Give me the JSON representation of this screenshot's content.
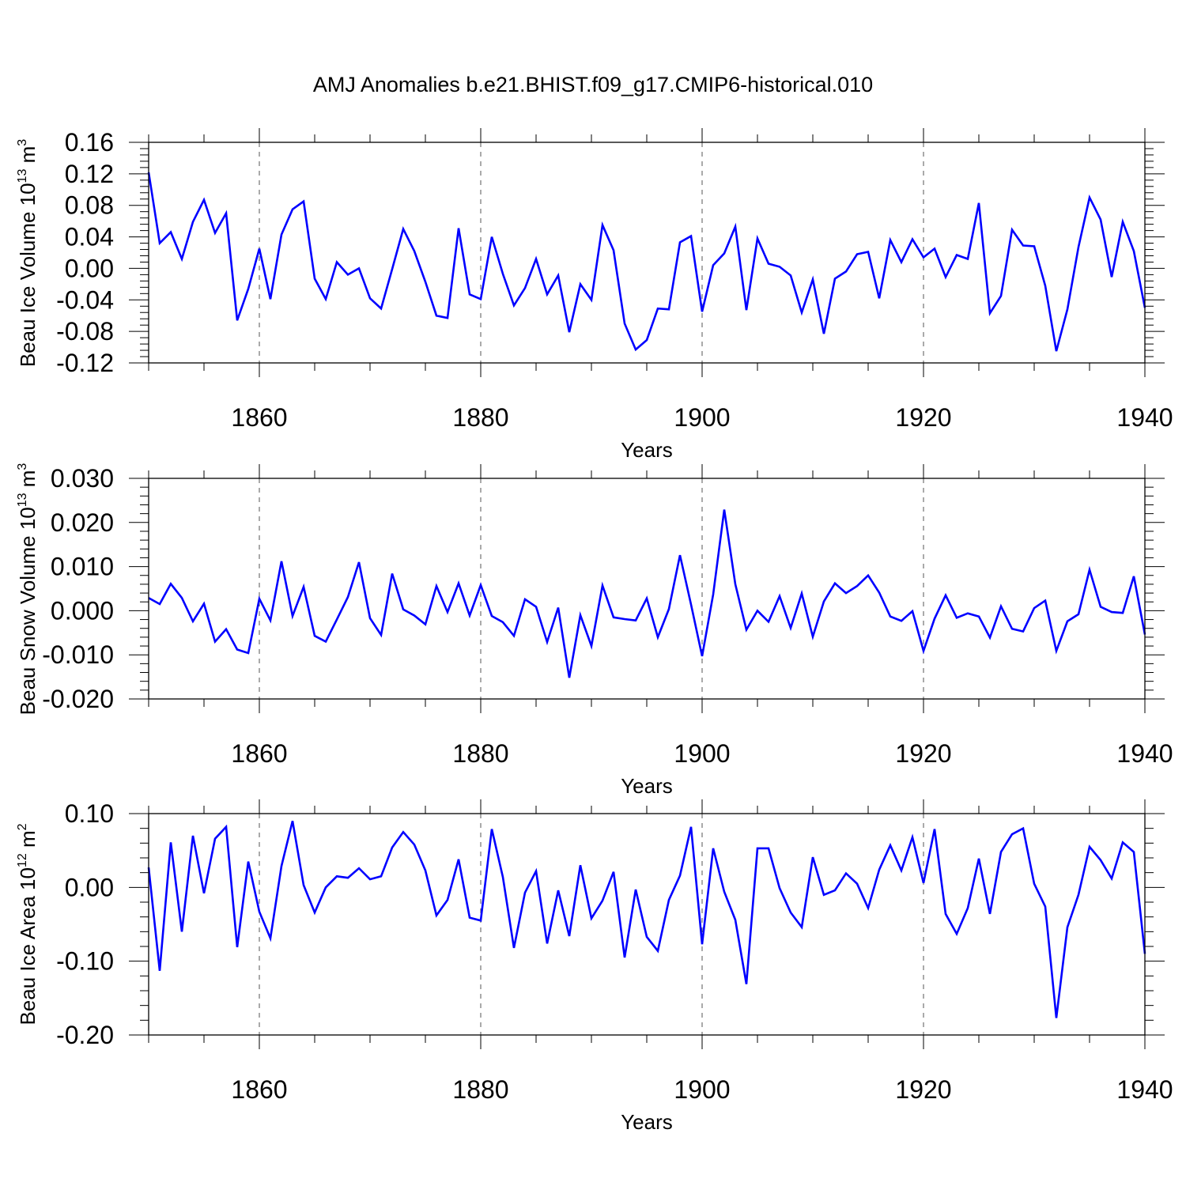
{
  "chart_data": [
    {
      "type": "line",
      "title": "AMJ Anomalies b.e21.BHIST.f09_g17.CMIP6-historical.010",
      "xlabel": "Years",
      "ylabel": "Beau Ice Volume 10",
      "ylabel_exp": "13",
      "ylabel_unit": " m",
      "ylabel_unit_exp": "3",
      "xlim": [
        1850,
        1940
      ],
      "ylim": [
        -0.12,
        0.16
      ],
      "yticks": [
        -0.12,
        -0.08,
        -0.04,
        0.0,
        0.04,
        0.08,
        0.12,
        0.16
      ],
      "ytick_labels": [
        "-0.12",
        "-0.08",
        "-0.04",
        "0.00",
        "0.04",
        "0.08",
        "0.12",
        "0.16"
      ],
      "xticks": [
        1860,
        1880,
        1900,
        1920,
        1940
      ],
      "xtick_labels": [
        "1860",
        "1880",
        "1900",
        "1920",
        "1940"
      ],
      "series": [
        {
          "name": "Beau Ice Volume",
          "color": "#0000ff",
          "x": [
            1850,
            1851,
            1852,
            1853,
            1854,
            1855,
            1856,
            1857,
            1858,
            1859,
            1860,
            1861,
            1862,
            1863,
            1864,
            1865,
            1866,
            1867,
            1868,
            1869,
            1870,
            1871,
            1872,
            1873,
            1874,
            1875,
            1876,
            1877,
            1878,
            1879,
            1880,
            1881,
            1882,
            1883,
            1884,
            1885,
            1886,
            1887,
            1888,
            1889,
            1890,
            1891,
            1892,
            1893,
            1894,
            1895,
            1896,
            1897,
            1898,
            1899,
            1900,
            1901,
            1902,
            1903,
            1904,
            1905,
            1906,
            1907,
            1908,
            1909,
            1910,
            1911,
            1912,
            1913,
            1914,
            1915,
            1916,
            1917,
            1918,
            1919,
            1920,
            1921,
            1922,
            1923,
            1924,
            1925,
            1926,
            1927,
            1928,
            1929,
            1930,
            1931,
            1932,
            1933,
            1934,
            1935,
            1936,
            1937,
            1938,
            1939,
            1940
          ],
          "values": [
            0.122,
            0.032,
            0.046,
            0.012,
            0.059,
            0.087,
            0.045,
            0.07,
            -0.066,
            -0.026,
            0.025,
            -0.039,
            0.043,
            0.075,
            0.085,
            -0.013,
            -0.039,
            0.008,
            -0.008,
            0.0,
            -0.038,
            -0.051,
            -0.001,
            0.05,
            0.022,
            -0.017,
            -0.06,
            -0.063,
            0.051,
            -0.033,
            -0.039,
            0.04,
            -0.007,
            -0.047,
            -0.025,
            0.012,
            -0.033,
            -0.009,
            -0.081,
            -0.02,
            -0.04,
            0.055,
            0.023,
            -0.07,
            -0.103,
            -0.091,
            -0.051,
            -0.052,
            0.033,
            0.041,
            -0.055,
            0.004,
            0.019,
            0.053,
            -0.053,
            0.038,
            0.006,
            0.002,
            -0.009,
            -0.056,
            -0.014,
            -0.083,
            -0.013,
            -0.004,
            0.018,
            0.021,
            -0.038,
            0.036,
            0.008,
            0.037,
            0.014,
            0.025,
            -0.011,
            0.017,
            0.012,
            0.083,
            -0.057,
            -0.035,
            0.049,
            0.029,
            0.028,
            -0.022,
            -0.105,
            -0.052,
            0.027,
            0.09,
            0.062,
            -0.011,
            0.059,
            0.022,
            -0.05
          ]
        }
      ]
    },
    {
      "type": "line",
      "xlabel": "Years",
      "ylabel": "Beau Snow Volume 10",
      "ylabel_exp": "13",
      "ylabel_unit": " m",
      "ylabel_unit_exp": "3",
      "xlim": [
        1850,
        1940
      ],
      "ylim": [
        -0.02,
        0.03
      ],
      "yticks": [
        -0.02,
        -0.01,
        0.0,
        0.01,
        0.02,
        0.03
      ],
      "ytick_labels": [
        "-0.020",
        "-0.010",
        "0.000",
        "0.010",
        "0.020",
        "0.030"
      ],
      "xticks": [
        1860,
        1880,
        1900,
        1920,
        1940
      ],
      "xtick_labels": [
        "1860",
        "1880",
        "1900",
        "1920",
        "1940"
      ],
      "series": [
        {
          "name": "Beau Snow Volume",
          "color": "#0000ff",
          "x": [
            1850,
            1851,
            1852,
            1853,
            1854,
            1855,
            1856,
            1857,
            1858,
            1859,
            1860,
            1861,
            1862,
            1863,
            1864,
            1865,
            1866,
            1867,
            1868,
            1869,
            1870,
            1871,
            1872,
            1873,
            1874,
            1875,
            1876,
            1877,
            1878,
            1879,
            1880,
            1881,
            1882,
            1883,
            1884,
            1885,
            1886,
            1887,
            1888,
            1889,
            1890,
            1891,
            1892,
            1893,
            1894,
            1895,
            1896,
            1897,
            1898,
            1899,
            1900,
            1901,
            1902,
            1903,
            1904,
            1905,
            1906,
            1907,
            1908,
            1909,
            1910,
            1911,
            1912,
            1913,
            1914,
            1915,
            1916,
            1917,
            1918,
            1919,
            1920,
            1921,
            1922,
            1923,
            1924,
            1925,
            1926,
            1927,
            1928,
            1929,
            1930,
            1931,
            1932,
            1933,
            1934,
            1935,
            1936,
            1937,
            1938,
            1939,
            1940
          ],
          "values": [
            0.0029,
            0.0015,
            0.0061,
            0.0029,
            -0.0024,
            0.0016,
            -0.007,
            -0.0042,
            -0.0088,
            -0.0096,
            0.0027,
            -0.0022,
            0.0112,
            -0.0012,
            0.0054,
            -0.0057,
            -0.007,
            -0.002,
            0.0031,
            0.011,
            -0.0017,
            -0.0055,
            0.0084,
            0.0003,
            -0.0011,
            -0.0031,
            0.0056,
            -0.0003,
            0.0062,
            -0.0011,
            0.0058,
            -0.0012,
            -0.0026,
            -0.0057,
            0.0026,
            0.0009,
            -0.0071,
            0.0007,
            -0.0152,
            -0.001,
            -0.008,
            0.0057,
            -0.0015,
            -0.0019,
            -0.0022,
            0.0028,
            -0.006,
            0.0004,
            0.0126,
            0.0014,
            -0.0103,
            0.0037,
            0.0229,
            0.006,
            -0.0043,
            0.0,
            -0.0025,
            0.0033,
            -0.0039,
            0.0039,
            -0.0059,
            0.0021,
            0.0062,
            0.004,
            0.0056,
            0.008,
            0.0041,
            -0.0013,
            -0.0023,
            -0.0001,
            -0.0091,
            -0.0018,
            0.0035,
            -0.0016,
            -0.0006,
            -0.0013,
            -0.0061,
            0.001,
            -0.0041,
            -0.0047,
            0.0006,
            0.0023,
            -0.0091,
            -0.0024,
            -0.0008,
            0.0093,
            0.0009,
            -0.0003,
            -0.0005,
            0.0078,
            -0.0054
          ]
        }
      ]
    },
    {
      "type": "line",
      "xlabel": "Years",
      "ylabel": "Beau Ice Area 10",
      "ylabel_exp": "12",
      "ylabel_unit": " m",
      "ylabel_unit_exp": "2",
      "xlim": [
        1850,
        1940
      ],
      "ylim": [
        -0.2,
        0.1
      ],
      "yticks": [
        -0.2,
        -0.1,
        0.0,
        0.1
      ],
      "ytick_labels": [
        "-0.20",
        "-0.10",
        "0.00",
        "0.10"
      ],
      "xticks": [
        1860,
        1880,
        1900,
        1920,
        1940
      ],
      "xtick_labels": [
        "1860",
        "1880",
        "1900",
        "1920",
        "1940"
      ],
      "series": [
        {
          "name": "Beau Ice Area",
          "color": "#0000ff",
          "x": [
            1850,
            1851,
            1852,
            1853,
            1854,
            1855,
            1856,
            1857,
            1858,
            1859,
            1860,
            1861,
            1862,
            1863,
            1864,
            1865,
            1866,
            1867,
            1868,
            1869,
            1870,
            1871,
            1872,
            1873,
            1874,
            1875,
            1876,
            1877,
            1878,
            1879,
            1880,
            1881,
            1882,
            1883,
            1884,
            1885,
            1886,
            1887,
            1888,
            1889,
            1890,
            1891,
            1892,
            1893,
            1894,
            1895,
            1896,
            1897,
            1898,
            1899,
            1900,
            1901,
            1902,
            1903,
            1904,
            1905,
            1906,
            1907,
            1908,
            1909,
            1910,
            1911,
            1912,
            1913,
            1914,
            1915,
            1916,
            1917,
            1918,
            1919,
            1920,
            1921,
            1922,
            1923,
            1924,
            1925,
            1926,
            1927,
            1928,
            1929,
            1930,
            1931,
            1932,
            1933,
            1934,
            1935,
            1936,
            1937,
            1938,
            1939,
            1940
          ],
          "values": [
            0.027,
            -0.113,
            0.061,
            -0.06,
            0.07,
            -0.008,
            0.066,
            0.082,
            -0.081,
            0.035,
            -0.033,
            -0.069,
            0.029,
            0.09,
            0.003,
            -0.034,
            0.0,
            0.015,
            0.013,
            0.026,
            0.011,
            0.015,
            0.054,
            0.075,
            0.058,
            0.023,
            -0.038,
            -0.017,
            0.038,
            -0.041,
            -0.045,
            0.079,
            0.014,
            -0.082,
            -0.007,
            0.022,
            -0.076,
            -0.004,
            -0.066,
            0.03,
            -0.042,
            -0.018,
            0.021,
            -0.095,
            -0.003,
            -0.067,
            -0.086,
            -0.017,
            0.016,
            0.082,
            -0.077,
            0.053,
            -0.006,
            -0.044,
            -0.131,
            0.053,
            0.053,
            -0.001,
            -0.034,
            -0.054,
            0.041,
            -0.01,
            -0.004,
            0.019,
            0.005,
            -0.028,
            0.024,
            0.057,
            0.023,
            0.068,
            0.006,
            0.079,
            -0.036,
            -0.063,
            -0.028,
            0.039,
            -0.036,
            0.048,
            0.072,
            0.08,
            0.005,
            -0.026,
            -0.177,
            -0.054,
            -0.01,
            0.055,
            0.037,
            0.012,
            0.061,
            0.048,
            -0.09
          ]
        }
      ]
    }
  ]
}
